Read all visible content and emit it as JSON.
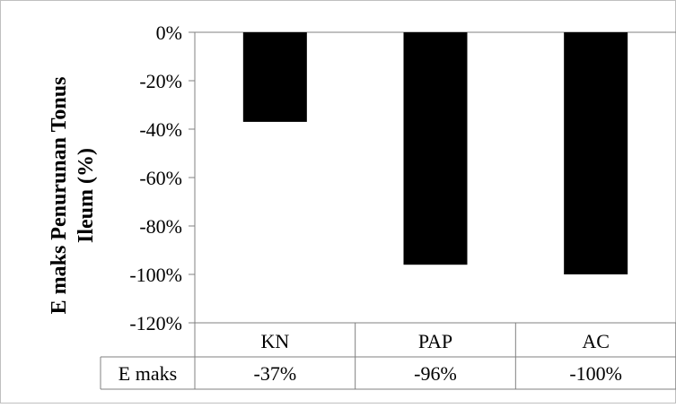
{
  "chart_data": {
    "type": "bar",
    "ylabel_line1": "E maks Penurunan Tonus",
    "ylabel_line2": "Ileum (%)",
    "categories": [
      "KN",
      "PAP",
      "AC"
    ],
    "series": [
      {
        "name": "E maks",
        "values": [
          -37,
          -96,
          -100
        ],
        "labels": [
          "-37%",
          "-96%",
          "-100%"
        ],
        "color": "#000000"
      }
    ],
    "ylim": [
      -120,
      0
    ],
    "yticks": [
      0,
      -20,
      -40,
      -60,
      -80,
      -100,
      -120
    ],
    "ytick_labels": [
      "0%",
      "-20%",
      "-40%",
      "-60%",
      "-80%",
      "-100%",
      "-120%"
    ],
    "data_table": true,
    "grid": false,
    "legend": "none"
  }
}
